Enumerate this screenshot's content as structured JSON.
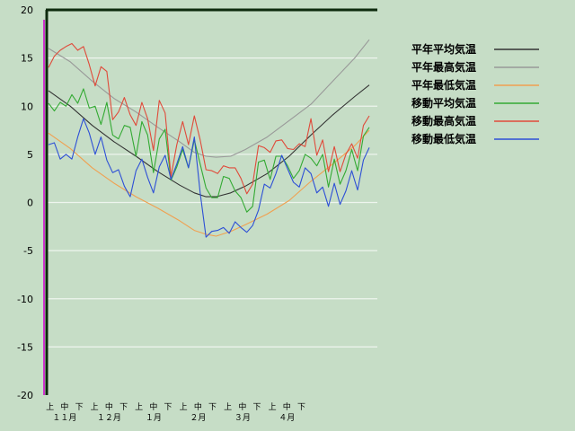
{
  "chart_data": {
    "type": "line",
    "y_ticks": [
      20,
      15,
      10,
      5,
      0,
      -5,
      -10,
      -15,
      -20
    ],
    "ylim": [
      -20,
      20
    ],
    "grid": true,
    "legend_position": "top-right",
    "x_period_labels": [
      "上",
      "中",
      "下"
    ],
    "x_month_labels": [
      "１１月",
      "１２月",
      "１月",
      "２月",
      "３月",
      "４月"
    ],
    "x_range_days": [
      0,
      180
    ],
    "series": [
      {
        "name": "平年平均気温",
        "color": "#333333",
        "key": "normal-mean",
        "points": [
          [
            0,
            11.6
          ],
          [
            15,
            10.0
          ],
          [
            30,
            8.0
          ],
          [
            45,
            6.3
          ],
          [
            60,
            4.8
          ],
          [
            75,
            3.2
          ],
          [
            90,
            1.8
          ],
          [
            100,
            1.0
          ],
          [
            108,
            0.6
          ],
          [
            115,
            0.6
          ],
          [
            125,
            1.0
          ],
          [
            135,
            1.7
          ],
          [
            150,
            3.0
          ],
          [
            165,
            4.8
          ],
          [
            180,
            7.0
          ],
          [
            195,
            9.1
          ],
          [
            210,
            11.0
          ],
          [
            220,
            12.2
          ]
        ]
      },
      {
        "name": "平年最高気温",
        "color": "#999999",
        "key": "normal-max",
        "points": [
          [
            0,
            16.0
          ],
          [
            15,
            14.6
          ],
          [
            30,
            12.6
          ],
          [
            45,
            10.8
          ],
          [
            60,
            9.4
          ],
          [
            75,
            7.8
          ],
          [
            90,
            6.3
          ],
          [
            100,
            5.2
          ],
          [
            108,
            4.8
          ],
          [
            115,
            4.7
          ],
          [
            125,
            4.8
          ],
          [
            135,
            5.5
          ],
          [
            150,
            6.8
          ],
          [
            165,
            8.5
          ],
          [
            180,
            10.2
          ],
          [
            195,
            12.6
          ],
          [
            210,
            15.0
          ],
          [
            220,
            16.9
          ]
        ]
      },
      {
        "name": "平年最低気温",
        "color": "#f0a050",
        "key": "normal-min",
        "points": [
          [
            0,
            7.2
          ],
          [
            15,
            5.6
          ],
          [
            30,
            3.6
          ],
          [
            45,
            2.0
          ],
          [
            60,
            0.6
          ],
          [
            75,
            -0.6
          ],
          [
            90,
            -1.9
          ],
          [
            100,
            -2.9
          ],
          [
            108,
            -3.3
          ],
          [
            115,
            -3.5
          ],
          [
            125,
            -3.0
          ],
          [
            135,
            -2.3
          ],
          [
            150,
            -1.2
          ],
          [
            165,
            0.2
          ],
          [
            180,
            2.2
          ],
          [
            195,
            4.0
          ],
          [
            210,
            5.9
          ],
          [
            220,
            7.5
          ]
        ]
      },
      {
        "name": "移動平均気温",
        "color": "#33aa33",
        "key": "moving-mean",
        "points": [
          [
            0,
            10.3
          ],
          [
            4,
            9.5
          ],
          [
            8,
            10.4
          ],
          [
            12,
            10.0
          ],
          [
            16,
            11.2
          ],
          [
            20,
            10.3
          ],
          [
            24,
            11.8
          ],
          [
            28,
            9.8
          ],
          [
            32,
            10.0
          ],
          [
            36,
            8.1
          ],
          [
            40,
            10.4
          ],
          [
            44,
            7.0
          ],
          [
            48,
            6.6
          ],
          [
            52,
            8.0
          ],
          [
            56,
            7.8
          ],
          [
            60,
            4.8
          ],
          [
            64,
            8.4
          ],
          [
            68,
            7.0
          ],
          [
            72,
            3.1
          ],
          [
            76,
            6.6
          ],
          [
            80,
            7.6
          ],
          [
            84,
            2.3
          ],
          [
            88,
            3.7
          ],
          [
            92,
            5.5
          ],
          [
            96,
            3.6
          ],
          [
            100,
            6.5
          ],
          [
            104,
            4.0
          ],
          [
            108,
            1.5
          ],
          [
            112,
            0.5
          ],
          [
            116,
            0.5
          ],
          [
            120,
            2.7
          ],
          [
            124,
            2.5
          ],
          [
            128,
            1.2
          ],
          [
            132,
            0.5
          ],
          [
            136,
            -1.0
          ],
          [
            140,
            -0.4
          ],
          [
            144,
            4.2
          ],
          [
            148,
            4.4
          ],
          [
            152,
            2.4
          ],
          [
            156,
            4.8
          ],
          [
            160,
            4.8
          ],
          [
            164,
            3.8
          ],
          [
            168,
            2.5
          ],
          [
            172,
            3.3
          ],
          [
            176,
            5.0
          ],
          [
            180,
            4.6
          ],
          [
            184,
            3.8
          ],
          [
            188,
            5.0
          ],
          [
            192,
            1.6
          ],
          [
            196,
            4.5
          ],
          [
            200,
            1.9
          ],
          [
            204,
            3.3
          ],
          [
            208,
            5.5
          ],
          [
            212,
            3.3
          ],
          [
            216,
            6.9
          ],
          [
            220,
            7.8
          ]
        ]
      },
      {
        "name": "移動最高気温",
        "color": "#e04a3a",
        "key": "moving-max",
        "points": [
          [
            0,
            14.0
          ],
          [
            4,
            15.2
          ],
          [
            8,
            15.8
          ],
          [
            12,
            16.2
          ],
          [
            16,
            16.5
          ],
          [
            20,
            15.8
          ],
          [
            24,
            16.2
          ],
          [
            28,
            14.3
          ],
          [
            32,
            12.1
          ],
          [
            36,
            14.1
          ],
          [
            40,
            13.6
          ],
          [
            44,
            8.6
          ],
          [
            48,
            9.4
          ],
          [
            52,
            10.9
          ],
          [
            56,
            9.1
          ],
          [
            60,
            8.0
          ],
          [
            64,
            10.4
          ],
          [
            68,
            8.7
          ],
          [
            72,
            5.4
          ],
          [
            76,
            10.6
          ],
          [
            80,
            9.3
          ],
          [
            84,
            2.7
          ],
          [
            88,
            6.0
          ],
          [
            92,
            8.4
          ],
          [
            96,
            6.0
          ],
          [
            100,
            9.0
          ],
          [
            104,
            6.5
          ],
          [
            108,
            3.4
          ],
          [
            112,
            3.3
          ],
          [
            116,
            3.0
          ],
          [
            120,
            3.8
          ],
          [
            124,
            3.6
          ],
          [
            128,
            3.6
          ],
          [
            132,
            2.5
          ],
          [
            136,
            0.9
          ],
          [
            140,
            1.9
          ],
          [
            144,
            5.9
          ],
          [
            148,
            5.7
          ],
          [
            152,
            5.2
          ],
          [
            156,
            6.4
          ],
          [
            160,
            6.5
          ],
          [
            164,
            5.6
          ],
          [
            168,
            5.5
          ],
          [
            172,
            6.1
          ],
          [
            176,
            5.8
          ],
          [
            180,
            8.7
          ],
          [
            184,
            4.9
          ],
          [
            188,
            6.5
          ],
          [
            192,
            3.2
          ],
          [
            196,
            5.8
          ],
          [
            200,
            3.2
          ],
          [
            204,
            5.0
          ],
          [
            208,
            6.1
          ],
          [
            212,
            4.6
          ],
          [
            216,
            8.0
          ],
          [
            220,
            9.0
          ]
        ]
      },
      {
        "name": "移動最低気温",
        "color": "#2d4fd6",
        "key": "moving-min",
        "points": [
          [
            0,
            6.0
          ],
          [
            4,
            6.2
          ],
          [
            8,
            4.5
          ],
          [
            12,
            5.0
          ],
          [
            16,
            4.5
          ],
          [
            20,
            6.8
          ],
          [
            24,
            8.7
          ],
          [
            28,
            7.2
          ],
          [
            32,
            5.0
          ],
          [
            36,
            6.8
          ],
          [
            40,
            4.4
          ],
          [
            44,
            3.1
          ],
          [
            48,
            3.4
          ],
          [
            52,
            1.7
          ],
          [
            56,
            0.6
          ],
          [
            60,
            3.3
          ],
          [
            64,
            4.5
          ],
          [
            68,
            2.6
          ],
          [
            72,
            1.0
          ],
          [
            76,
            3.7
          ],
          [
            80,
            4.9
          ],
          [
            84,
            2.4
          ],
          [
            88,
            4.0
          ],
          [
            92,
            5.8
          ],
          [
            96,
            3.6
          ],
          [
            100,
            6.8
          ],
          [
            104,
            1.0
          ],
          [
            108,
            -3.6
          ],
          [
            112,
            -3.0
          ],
          [
            116,
            -2.9
          ],
          [
            120,
            -2.6
          ],
          [
            124,
            -3.2
          ],
          [
            128,
            -2.0
          ],
          [
            132,
            -2.6
          ],
          [
            136,
            -3.1
          ],
          [
            140,
            -2.4
          ],
          [
            144,
            -0.8
          ],
          [
            148,
            1.9
          ],
          [
            152,
            1.5
          ],
          [
            156,
            3.0
          ],
          [
            160,
            4.9
          ],
          [
            164,
            3.5
          ],
          [
            168,
            2.1
          ],
          [
            172,
            1.6
          ],
          [
            176,
            3.6
          ],
          [
            180,
            3.0
          ],
          [
            184,
            1.0
          ],
          [
            188,
            1.6
          ],
          [
            192,
            -0.4
          ],
          [
            196,
            2.0
          ],
          [
            200,
            -0.2
          ],
          [
            204,
            1.2
          ],
          [
            208,
            3.3
          ],
          [
            212,
            1.3
          ],
          [
            216,
            4.4
          ],
          [
            220,
            5.7
          ]
        ]
      }
    ]
  }
}
